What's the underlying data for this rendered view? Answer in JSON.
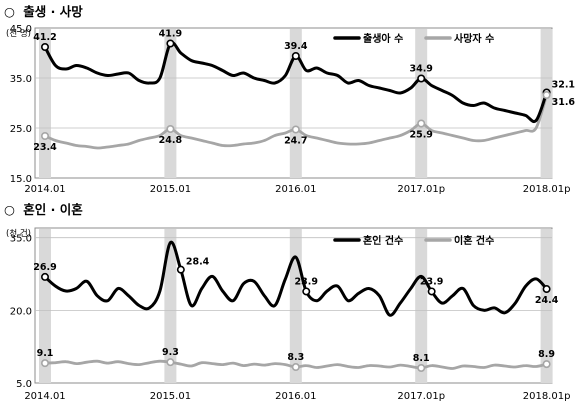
{
  "sections": [
    {
      "marker": "○",
      "title": "출생 · 사망",
      "unit": "(천 명)"
    },
    {
      "marker": "○",
      "title": "혼인 · 이혼",
      "unit": "(천 건)"
    }
  ],
  "colors": {
    "series_dark": "#000000",
    "series_light": "#a6a6a6",
    "highlight": "#d9d9d9",
    "frame": "#8c8c8c"
  },
  "chart_data": [
    {
      "type": "line",
      "x_ticks": [
        "2014.01",
        "2015.01",
        "2016.01",
        "2017.01p",
        "2018.01p"
      ],
      "x_tick_months": [
        0,
        12,
        24,
        36,
        48
      ],
      "y_ticks": [
        "15.0",
        "25.0",
        "35.0",
        "45.0"
      ],
      "ylim": [
        15,
        45
      ],
      "highlight_months": [
        0,
        12,
        24,
        36,
        48
      ],
      "legend_position": "top-right",
      "series": [
        {
          "name": "출생아 수",
          "style": "dark",
          "values": [
            41.2,
            37.5,
            36.8,
            37.5,
            37.0,
            36.0,
            35.5,
            35.8,
            36.0,
            34.5,
            34.0,
            35.0,
            41.9,
            40.0,
            38.5,
            38.0,
            37.5,
            36.5,
            35.5,
            36.0,
            35.0,
            34.5,
            34.0,
            35.5,
            39.4,
            36.5,
            37.0,
            36.0,
            35.5,
            34.0,
            34.5,
            33.5,
            33.0,
            32.5,
            32.0,
            33.0,
            34.9,
            33.5,
            32.5,
            31.5,
            30.0,
            29.5,
            30.0,
            29.0,
            28.5,
            28.0,
            27.5,
            26.5,
            32.1
          ],
          "labels": [
            {
              "i": 0,
              "text": "41.2",
              "pos": "above"
            },
            {
              "i": 12,
              "text": "41.9",
              "pos": "above"
            },
            {
              "i": 24,
              "text": "39.4",
              "pos": "above"
            },
            {
              "i": 36,
              "text": "34.9",
              "pos": "above"
            },
            {
              "i": 48,
              "text": "32.1",
              "pos": "right"
            }
          ]
        },
        {
          "name": "사망자 수",
          "style": "light",
          "values": [
            23.4,
            22.5,
            22.0,
            21.5,
            21.3,
            21.0,
            21.2,
            21.5,
            21.8,
            22.5,
            23.0,
            23.5,
            24.8,
            23.5,
            23.0,
            22.5,
            22.0,
            21.5,
            21.5,
            21.8,
            22.0,
            22.5,
            23.5,
            24.0,
            24.7,
            23.5,
            23.0,
            22.5,
            22.0,
            21.8,
            21.8,
            22.0,
            22.5,
            23.0,
            23.5,
            24.5,
            25.9,
            24.5,
            24.0,
            23.5,
            23.0,
            22.5,
            22.5,
            23.0,
            23.5,
            24.0,
            24.5,
            25.0,
            31.6
          ],
          "labels": [
            {
              "i": 0,
              "text": "23.4",
              "pos": "below"
            },
            {
              "i": 12,
              "text": "24.8",
              "pos": "below"
            },
            {
              "i": 24,
              "text": "24.7",
              "pos": "below"
            },
            {
              "i": 36,
              "text": "25.9",
              "pos": "below"
            },
            {
              "i": 48,
              "text": "31.6",
              "pos": "right"
            }
          ]
        }
      ]
    },
    {
      "type": "line",
      "x_ticks": [
        "2014.01",
        "2015.01",
        "2016.01",
        "2017.01p",
        "2018.01p"
      ],
      "x_tick_months": [
        0,
        12,
        24,
        36,
        48
      ],
      "y_ticks": [
        "5.0",
        "20.0",
        "35.0"
      ],
      "ylim": [
        5,
        37
      ],
      "highlight_months": [
        0,
        12,
        24,
        36,
        48
      ],
      "legend_position": "top-right",
      "series": [
        {
          "name": "혼인 건수",
          "style": "dark",
          "values": [
            26.9,
            25.0,
            24.0,
            24.5,
            26.0,
            23.0,
            22.0,
            24.5,
            23.0,
            21.0,
            20.5,
            24.0,
            34.0,
            28.4,
            21.0,
            24.5,
            27.0,
            24.0,
            22.0,
            25.5,
            26.0,
            23.0,
            21.0,
            26.5,
            31.0,
            23.9,
            22.0,
            24.0,
            25.0,
            22.0,
            23.5,
            24.5,
            23.0,
            19.0,
            21.5,
            24.5,
            27.0,
            23.9,
            21.5,
            23.0,
            24.5,
            21.0,
            20.0,
            20.5,
            19.5,
            21.5,
            25.0,
            26.5,
            24.4
          ],
          "labels": [
            {
              "i": 0,
              "text": "26.9",
              "pos": "above"
            },
            {
              "i": 13,
              "text": "28.4",
              "pos": "right"
            },
            {
              "i": 25,
              "text": "23.9",
              "pos": "above"
            },
            {
              "i": 37,
              "text": "23.9",
              "pos": "above"
            },
            {
              "i": 48,
              "text": "24.4",
              "pos": "below"
            }
          ]
        },
        {
          "name": "이혼 건수",
          "style": "light",
          "values": [
            9.1,
            9.2,
            9.4,
            9.0,
            9.3,
            9.5,
            9.1,
            9.4,
            9.0,
            8.8,
            9.2,
            9.5,
            9.3,
            8.9,
            8.5,
            9.2,
            9.0,
            8.8,
            9.1,
            8.6,
            8.9,
            8.7,
            9.0,
            8.8,
            8.3,
            8.6,
            8.2,
            8.5,
            8.8,
            8.4,
            8.2,
            8.6,
            8.5,
            8.3,
            8.7,
            8.4,
            8.1,
            8.6,
            8.3,
            8.0,
            8.5,
            8.4,
            8.2,
            8.7,
            8.5,
            8.3,
            8.6,
            8.4,
            8.9
          ],
          "labels": [
            {
              "i": 0,
              "text": "9.1",
              "pos": "above"
            },
            {
              "i": 12,
              "text": "9.3",
              "pos": "above"
            },
            {
              "i": 24,
              "text": "8.3",
              "pos": "above"
            },
            {
              "i": 36,
              "text": "8.1",
              "pos": "above"
            },
            {
              "i": 48,
              "text": "8.9",
              "pos": "above"
            }
          ]
        }
      ]
    }
  ]
}
